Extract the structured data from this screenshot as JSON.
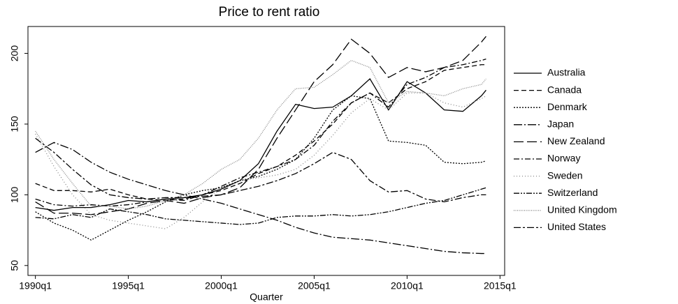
{
  "chart_data": {
    "type": "line",
    "title": "Price to rent ratio",
    "x_label": "Quarter",
    "x": [
      1990,
      1991,
      1992,
      1993,
      1994,
      1995,
      1996,
      1997,
      1998,
      1999,
      2000,
      2001,
      2002,
      2003,
      2004,
      2005,
      2006,
      2007,
      2008,
      2009,
      2010,
      2011,
      2012,
      2013,
      2014,
      2014.25
    ],
    "xlim": [
      1989.6,
      2015.25
    ],
    "xticks": [
      {
        "value": 1990,
        "label": "1990q1"
      },
      {
        "value": 1995,
        "label": "1995q1"
      },
      {
        "value": 2000,
        "label": "2000q1"
      },
      {
        "value": 2005,
        "label": "2005q1"
      },
      {
        "value": 2010,
        "label": "2010q1"
      },
      {
        "value": 2015,
        "label": "2015q1"
      }
    ],
    "ylim": [
      43,
      219
    ],
    "yticks": [
      50,
      100,
      150,
      200
    ],
    "legend": "right",
    "series": [
      {
        "name": "Australia",
        "color": "#000000",
        "dash": "none",
        "values": [
          91,
          89,
          91,
          91,
          93,
          96,
          95,
          97,
          98,
          100,
          104,
          110,
          122,
          145,
          164,
          161,
          162,
          170,
          182,
          160,
          180,
          172,
          160,
          159,
          170,
          174
        ]
      },
      {
        "name": "Canada",
        "color": "#000000",
        "dash": "7,4",
        "values": [
          108,
          103,
          103,
          102,
          104,
          100,
          97,
          96,
          97,
          100,
          103,
          108,
          115,
          120,
          128,
          138,
          150,
          165,
          172,
          165,
          175,
          180,
          188,
          190,
          192,
          192
        ]
      },
      {
        "name": "Denmark",
        "color": "#000000",
        "dash": "2,2",
        "values": [
          88,
          80,
          75,
          68,
          75,
          82,
          88,
          95,
          100,
          103,
          105,
          110,
          113,
          118,
          125,
          140,
          160,
          170,
          168,
          138,
          137,
          135,
          123,
          122,
          123,
          124
        ]
      },
      {
        "name": "Japan",
        "color": "#000000",
        "dash": "12,3,2,3",
        "values": [
          130,
          137,
          132,
          123,
          116,
          111,
          107,
          103,
          100,
          97,
          94,
          90,
          86,
          82,
          77,
          73,
          70,
          69,
          68,
          66,
          64,
          62,
          60,
          59,
          58.5,
          58.5
        ]
      },
      {
        "name": "New Zealand",
        "color": "#000000",
        "dash": "14,5",
        "values": [
          95,
          87,
          87,
          86,
          88,
          90,
          94,
          96,
          94,
          98,
          100,
          105,
          118,
          140,
          160,
          180,
          192,
          210,
          200,
          183,
          190,
          187,
          190,
          195,
          208,
          212
        ]
      },
      {
        "name": "Norway",
        "color": "#000000",
        "dash": "8,3,2,3",
        "values": [
          97,
          93,
          92,
          93,
          92,
          93,
          95,
          97,
          96,
          100,
          106,
          112,
          116,
          120,
          125,
          135,
          152,
          165,
          172,
          162,
          178,
          183,
          190,
          192,
          195,
          196
        ]
      },
      {
        "name": "Sweden",
        "color": "#888888",
        "dash": "1,3",
        "values": [
          143,
          120,
          100,
          86,
          82,
          80,
          78,
          76,
          84,
          95,
          105,
          110,
          112,
          114,
          118,
          128,
          142,
          158,
          168,
          160,
          172,
          172,
          165,
          162,
          168,
          170
        ]
      },
      {
        "name": "Switzerland",
        "color": "#000000",
        "dash": "8,2,2,2,2,2",
        "values": [
          84,
          83,
          86,
          84,
          90,
          88,
          86,
          83,
          82,
          81,
          80,
          79,
          80,
          84,
          85,
          85,
          86,
          85,
          86,
          88,
          91,
          94,
          96,
          100,
          104,
          105
        ]
      },
      {
        "name": "United Kingdom",
        "color": "#888888",
        "dash": "1,1.5",
        "values": [
          145,
          125,
          108,
          92,
          92,
          90,
          92,
          96,
          100,
          108,
          118,
          125,
          140,
          160,
          175,
          176,
          185,
          195,
          190,
          165,
          173,
          172,
          170,
          175,
          178,
          182
        ]
      },
      {
        "name": "United States",
        "color": "#000000",
        "dash": "10,3,3,3",
        "values": [
          140,
          130,
          118,
          107,
          100,
          98,
          97,
          98,
          98,
          99,
          100,
          103,
          106,
          110,
          115,
          122,
          130,
          125,
          110,
          102,
          103,
          97,
          95,
          98,
          100,
          100
        ]
      }
    ]
  }
}
